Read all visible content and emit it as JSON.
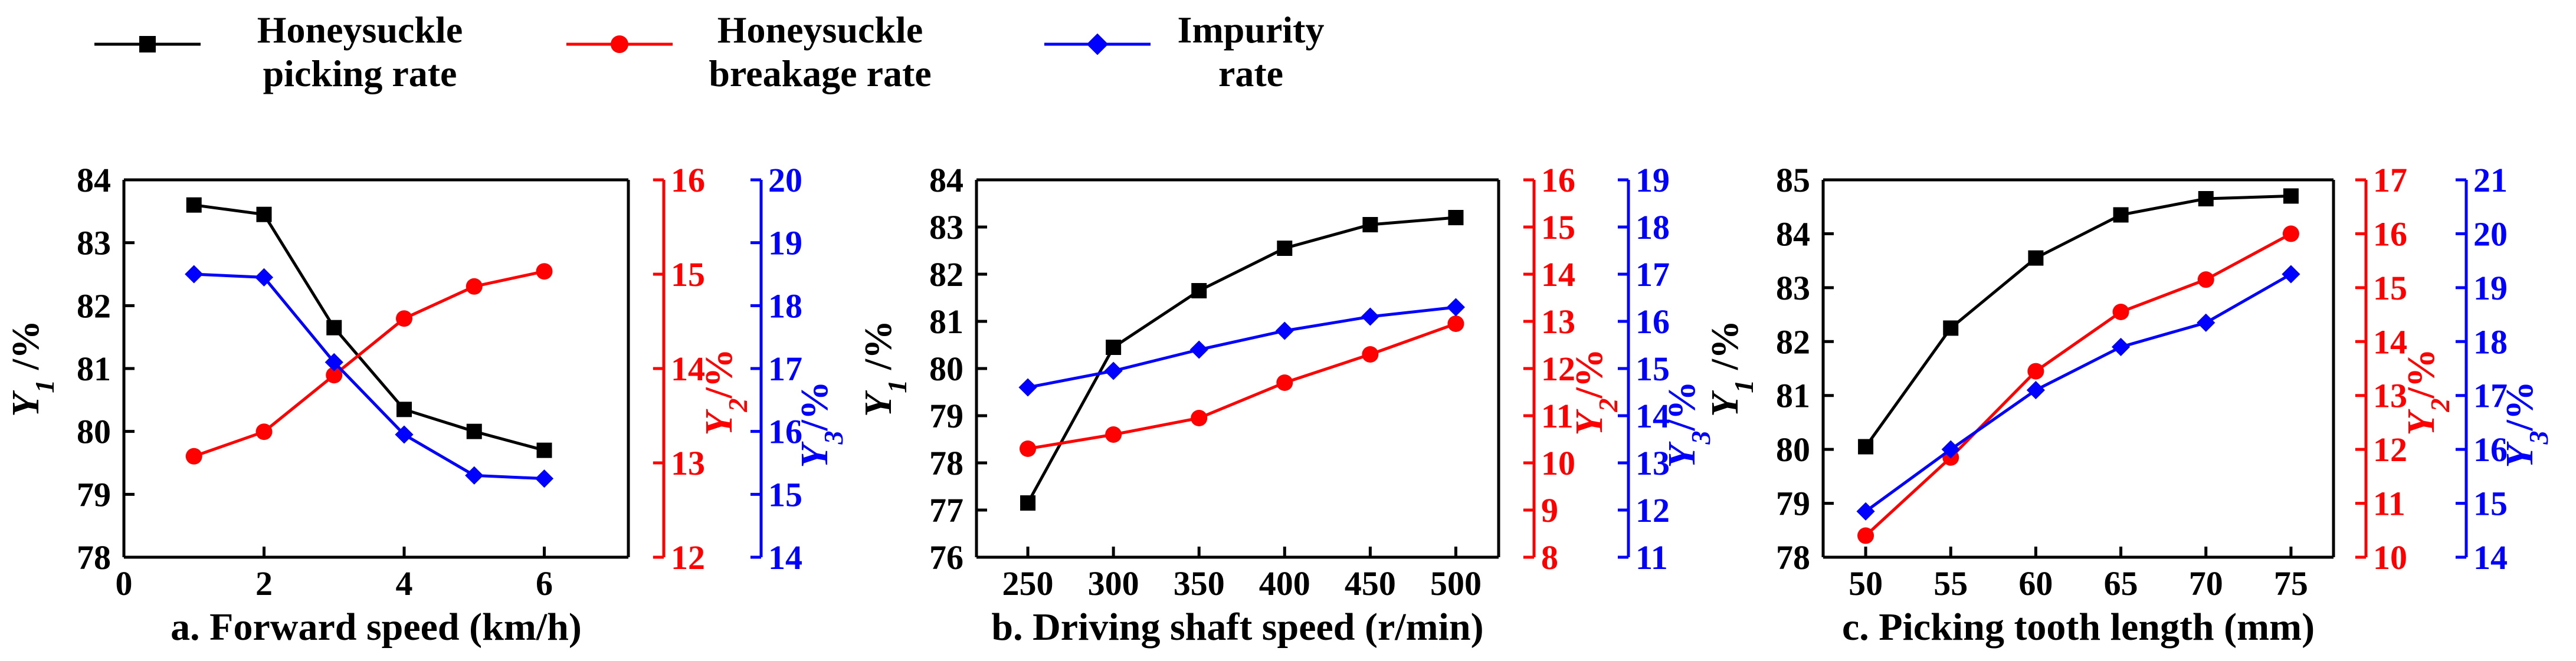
{
  "legend": {
    "items": [
      {
        "line1": "Honeysuckle",
        "line2": "picking rate",
        "color": "#000000",
        "marker": "square"
      },
      {
        "line1": "Honeysuckle",
        "line2": "breakage rate",
        "color": "#ff0000",
        "marker": "circle"
      },
      {
        "line1": "Impurity",
        "line2": "rate",
        "color": "#0000ff",
        "marker": "diamond"
      }
    ]
  },
  "chart_data": [
    {
      "type": "line",
      "id": "a",
      "xlabel": "a. Forward speed (km/h)",
      "xlim": [
        0,
        7.2
      ],
      "xticks": [
        0,
        2,
        4,
        6
      ],
      "x": [
        1,
        2,
        3,
        4,
        5,
        6
      ],
      "axes": {
        "y1": {
          "label": "Y1 /%",
          "lim": [
            78,
            84
          ],
          "ticks": [
            78,
            79,
            80,
            81,
            82,
            83,
            84
          ],
          "color": "#000000"
        },
        "y2": {
          "label": "Y2/%",
          "lim": [
            12,
            16
          ],
          "ticks": [
            12,
            13,
            14,
            15,
            16
          ],
          "color": "#ff0000"
        },
        "y3": {
          "label": "Y3/%",
          "lim": [
            14,
            20
          ],
          "ticks": [
            14,
            15,
            16,
            17,
            18,
            19,
            20
          ],
          "color": "#0000ff"
        }
      },
      "series": [
        {
          "name": "Honeysuckle picking rate",
          "axis": "y1",
          "color": "#000000",
          "marker": "square",
          "values": [
            83.6,
            83.45,
            81.65,
            80.35,
            80.0,
            79.7
          ]
        },
        {
          "name": "Honeysuckle breakage rate",
          "axis": "y2",
          "color": "#ff0000",
          "marker": "circle",
          "values": [
            13.07,
            13.33,
            13.93,
            14.53,
            14.87,
            15.03
          ]
        },
        {
          "name": "Impurity rate",
          "axis": "y3",
          "color": "#0000ff",
          "marker": "diamond",
          "values": [
            18.5,
            18.45,
            17.1,
            15.95,
            15.3,
            15.25
          ]
        }
      ]
    },
    {
      "type": "line",
      "id": "b",
      "xlabel": "b. Driving shaft speed (r/min)",
      "xlim": [
        220,
        525
      ],
      "xticks": [
        250,
        300,
        350,
        400,
        450,
        500
      ],
      "x": [
        250,
        300,
        350,
        400,
        450,
        500
      ],
      "axes": {
        "y1": {
          "label": "Y1 /%",
          "lim": [
            76,
            84
          ],
          "ticks": [
            76,
            77,
            78,
            79,
            80,
            81,
            82,
            83,
            84
          ],
          "color": "#000000"
        },
        "y2": {
          "label": "Y2/%",
          "lim": [
            8,
            16
          ],
          "ticks": [
            8,
            9,
            10,
            11,
            12,
            13,
            14,
            15,
            16
          ],
          "color": "#ff0000"
        },
        "y3": {
          "label": "Y3/%",
          "lim": [
            11,
            19
          ],
          "ticks": [
            11,
            12,
            13,
            14,
            15,
            16,
            17,
            18,
            19
          ],
          "color": "#0000ff"
        }
      },
      "series": [
        {
          "name": "Honeysuckle picking rate",
          "axis": "y1",
          "color": "#000000",
          "marker": "square",
          "values": [
            77.15,
            80.45,
            81.65,
            82.55,
            83.05,
            83.2
          ]
        },
        {
          "name": "Honeysuckle breakage rate",
          "axis": "y2",
          "color": "#ff0000",
          "marker": "circle",
          "values": [
            10.3,
            10.6,
            10.95,
            11.7,
            12.3,
            12.95
          ]
        },
        {
          "name": "Impurity rate",
          "axis": "y3",
          "color": "#0000ff",
          "marker": "diamond",
          "values": [
            14.6,
            14.95,
            15.4,
            15.8,
            16.1,
            16.3
          ]
        }
      ]
    },
    {
      "type": "line",
      "id": "c",
      "xlabel": "c. Picking tooth length (mm)",
      "xlim": [
        47.5,
        77.5
      ],
      "xticks": [
        50,
        55,
        60,
        65,
        70,
        75
      ],
      "x": [
        50,
        55,
        60,
        65,
        70,
        75
      ],
      "axes": {
        "y1": {
          "label": "Y1 /%",
          "lim": [
            78,
            85
          ],
          "ticks": [
            78,
            79,
            80,
            81,
            82,
            83,
            84,
            85
          ],
          "color": "#000000"
        },
        "y2": {
          "label": "Y2/%",
          "lim": [
            10,
            17
          ],
          "ticks": [
            10,
            11,
            12,
            13,
            14,
            15,
            16,
            17
          ],
          "color": "#ff0000"
        },
        "y3": {
          "label": "Y3/%",
          "lim": [
            14,
            21
          ],
          "ticks": [
            14,
            15,
            16,
            17,
            18,
            19,
            20,
            21
          ],
          "color": "#0000ff"
        }
      },
      "series": [
        {
          "name": "Honeysuckle picking rate",
          "axis": "y1",
          "color": "#000000",
          "marker": "square",
          "values": [
            80.05,
            82.25,
            83.55,
            84.35,
            84.65,
            84.7
          ]
        },
        {
          "name": "Honeysuckle breakage rate",
          "axis": "y2",
          "color": "#ff0000",
          "marker": "circle",
          "values": [
            10.4,
            11.85,
            13.45,
            14.55,
            15.15,
            16.0
          ]
        },
        {
          "name": "Impurity rate",
          "axis": "y3",
          "color": "#0000ff",
          "marker": "diamond",
          "values": [
            14.85,
            16.0,
            17.1,
            17.9,
            18.35,
            19.25
          ]
        }
      ]
    }
  ]
}
